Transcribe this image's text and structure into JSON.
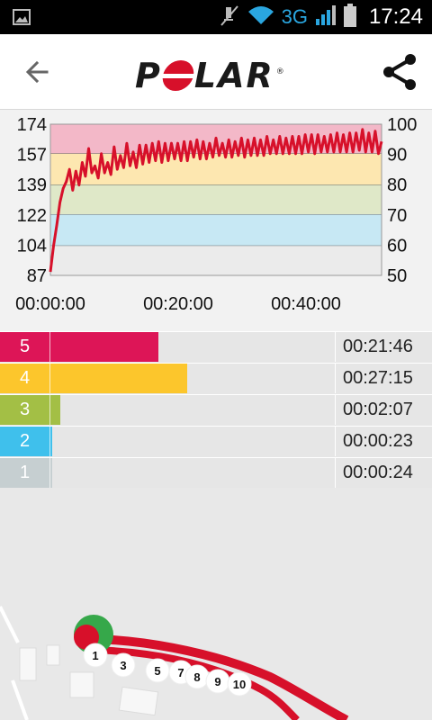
{
  "status_bar": {
    "network": "3G",
    "time": "17:24",
    "icons": [
      "image-notification-icon",
      "mute-icon",
      "wifi-icon",
      "signal-icon",
      "battery-icon"
    ]
  },
  "app_bar": {
    "logo_parts": [
      "P",
      "O",
      "LAR"
    ],
    "logo_reg": "®",
    "icons": [
      "back-arrow-icon",
      "share-icon"
    ]
  },
  "chart_data": {
    "type": "line",
    "left_axis_ticks": [
      "174",
      "157",
      "139",
      "122",
      "104",
      "87"
    ],
    "right_axis_ticks": [
      "100",
      "90",
      "80",
      "70",
      "60",
      "50"
    ],
    "x_ticks": [
      "00:00:00",
      "00:20:00",
      "00:40:00"
    ],
    "x_range_minutes": [
      0,
      52
    ],
    "ylim": [
      87,
      174
    ],
    "zones": [
      {
        "zone": 5,
        "from": 157,
        "to": 174,
        "color": "#f3b8c8"
      },
      {
        "zone": 4,
        "from": 139,
        "to": 157,
        "color": "#fde7b0"
      },
      {
        "zone": 3,
        "from": 122,
        "to": 139,
        "color": "#dfe8c8"
      },
      {
        "zone": 2,
        "from": 104,
        "to": 122,
        "color": "#c7e8f4"
      },
      {
        "zone": 1,
        "from": 87,
        "to": 104,
        "color": "#ebebeb"
      }
    ],
    "line_color": "#d7102a",
    "series": [
      {
        "x": [
          0,
          0.5,
          1,
          1.5,
          2,
          2.5,
          3,
          3.5,
          4,
          4.5,
          5,
          5.5,
          6,
          6.5,
          7,
          7.5,
          8,
          8.5,
          9,
          9.5,
          10,
          10.5,
          11,
          11.5,
          12,
          12.5,
          13,
          13.5,
          14,
          14.5,
          15,
          15.5,
          16,
          16.5,
          17,
          17.5,
          18,
          18.5,
          19,
          19.5,
          20,
          20.5,
          21,
          21.5,
          22,
          22.5,
          23,
          23.5,
          24,
          24.5,
          25,
          25.5,
          26,
          26.5,
          27,
          27.5,
          28,
          28.5,
          29,
          29.5,
          30,
          30.5,
          31,
          31.5,
          32,
          32.5,
          33,
          33.5,
          34,
          34.5,
          35,
          35.5,
          36,
          36.5,
          37,
          37.5,
          38,
          38.5,
          39,
          39.5,
          40,
          40.5,
          41,
          41.5,
          42,
          42.5,
          43,
          43.5,
          44,
          44.5,
          45,
          45.5,
          46,
          46.5,
          47,
          47.5,
          48,
          48.5,
          49,
          49.5,
          50,
          50.5,
          51,
          51.5,
          52
        ],
        "values": [
          89,
          104,
          116,
          129,
          137,
          141,
          148,
          136,
          147,
          139,
          152,
          144,
          160,
          146,
          150,
          143,
          157,
          146,
          152,
          145,
          161,
          148,
          156,
          149,
          163,
          150,
          158,
          149,
          162,
          151,
          162,
          152,
          163,
          153,
          164,
          152,
          163,
          153,
          163,
          154,
          163,
          153,
          164,
          153,
          164,
          155,
          165,
          154,
          164,
          154,
          163,
          155,
          166,
          156,
          163,
          155,
          165,
          155,
          164,
          156,
          166,
          155,
          165,
          156,
          166,
          156,
          165,
          156,
          167,
          157,
          165,
          157,
          167,
          157,
          166,
          157,
          167,
          157,
          167,
          157,
          168,
          158,
          168,
          157,
          168,
          158,
          167,
          158,
          168,
          158,
          169,
          158,
          168,
          158,
          169,
          158,
          169,
          159,
          171,
          158,
          169,
          158,
          170,
          157,
          164
        ]
      }
    ]
  },
  "zones_table": [
    {
      "zone": "5",
      "time": "00:21:46",
      "fraction": 0.38,
      "color": "#dd1557"
    },
    {
      "zone": "4",
      "time": "00:27:15",
      "fraction": 0.48,
      "color": "#fcc62c"
    },
    {
      "zone": "3",
      "time": "00:02:07",
      "fraction": 0.035,
      "color": "#a3bf45"
    },
    {
      "zone": "2",
      "time": "00:00:23",
      "fraction": 0.006,
      "color": "#3fc0ec"
    },
    {
      "zone": "1",
      "time": "00:00:24",
      "fraction": 0.006,
      "color": "#c6cfd1"
    }
  ],
  "map": {
    "markers": [
      "1",
      "3",
      "5",
      "7",
      "8",
      "9",
      "10"
    ],
    "route_color": "#d7102a",
    "start_color": "#36a84a"
  }
}
